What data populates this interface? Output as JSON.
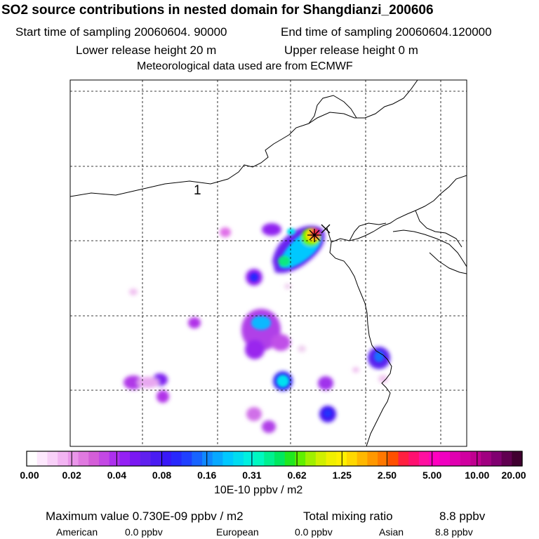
{
  "header": {
    "title": "SO2 source contributions in nested domain for Shangdianzi_200606",
    "start": "Start time of sampling 20060604. 90000",
    "end": "End time of sampling 20060604.120000",
    "lower": "Lower release height   20 m",
    "upper": "Upper release height    0 m",
    "met": "Meteorological data used are from ECMWF"
  },
  "map": {
    "contour_label": "1",
    "receptor": "Shangdianzi"
  },
  "colorbar": {
    "ticks": [
      "0.00",
      "0.02",
      "0.04",
      "0.08",
      "0.16",
      "0.31",
      "0.62",
      "1.25",
      "2.50",
      "5.00",
      "10.00",
      "20.00"
    ],
    "colors": [
      "#ffffff",
      "#fde8fd",
      "#f8d0f8",
      "#f2b4f2",
      "#ea96ea",
      "#e07ae0",
      "#d45ed8",
      "#c348e4",
      "#ad30ee",
      "#9420f4",
      "#7a18f2",
      "#6020ee",
      "#4a1cf2",
      "#3818f8",
      "#2828fc",
      "#2040ff",
      "#1864ff",
      "#1088ff",
      "#08a8ff",
      "#00c8ff",
      "#00dcf0",
      "#00f0e0",
      "#00f8c0",
      "#00f090",
      "#00e860",
      "#20e820",
      "#60f000",
      "#a0f000",
      "#d0f000",
      "#f0f000",
      "#fff000",
      "#ffd800",
      "#ffb800",
      "#ff9800",
      "#ff7800",
      "#ff5000",
      "#ff2040",
      "#ff1070",
      "#ff10a0",
      "#ff00c0",
      "#f000c0",
      "#e000b0",
      "#d000a0",
      "#c00090",
      "#a00080",
      "#800070",
      "#600050",
      "#400030"
    ],
    "unit": "10E-10 ppbv / m2"
  },
  "footer": {
    "max": "Maximum value  0.730E-09 ppbv / m2",
    "total_label": "Total mixing ratio",
    "total_value": "8.8 ppbv",
    "american_label": "American",
    "american_value": "0.0 ppbv",
    "european_label": "European",
    "european_value": "0.0 ppbv",
    "asian_label": "Asian",
    "asian_value": "8.8 ppbv"
  }
}
